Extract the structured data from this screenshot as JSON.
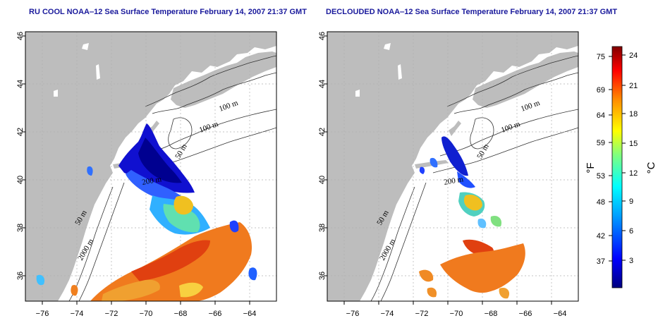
{
  "panels": [
    {
      "id": "left",
      "title": "RU COOL NOAA‒12 Sea Surface Temperature February 14, 2007 21:37 GMT",
      "contour_labels": [
        "100 m",
        "100 m",
        "50 m",
        "200 m",
        "50 m",
        "2000 m"
      ]
    },
    {
      "id": "right",
      "title": "DECLOUDED NOAA‒12 Sea Surface Temperature February 14, 2007 21:37 GMT",
      "contour_labels": [
        "100 m",
        "100 m",
        "50 m",
        "200 m",
        "50 m",
        "2000 m"
      ]
    }
  ],
  "axes": {
    "x_ticks": [
      "−76",
      "−74",
      "−72",
      "−70",
      "−68",
      "−66",
      "−64"
    ],
    "y_ticks": [
      "36",
      "38",
      "40",
      "42",
      "44",
      "46"
    ]
  },
  "colorbar": {
    "fahrenheit_ticks": [
      "75",
      "69",
      "64",
      "59",
      "53",
      "48",
      "42",
      "37"
    ],
    "celsius_ticks": [
      "24",
      "21",
      "18",
      "15",
      "12",
      "9",
      "6",
      "3"
    ],
    "fahrenheit_unit": "°F",
    "celsius_unit": "°C",
    "colors": [
      "#00007f",
      "#0000ff",
      "#007fff",
      "#00ffff",
      "#7fff7f",
      "#ffff00",
      "#ff7f00",
      "#ff0000",
      "#7f0000"
    ]
  },
  "colors": {
    "land": "#bdbdbd",
    "ocean": "#ffffff",
    "title": "#1a1a9c",
    "grid": "#b0b0b0"
  }
}
